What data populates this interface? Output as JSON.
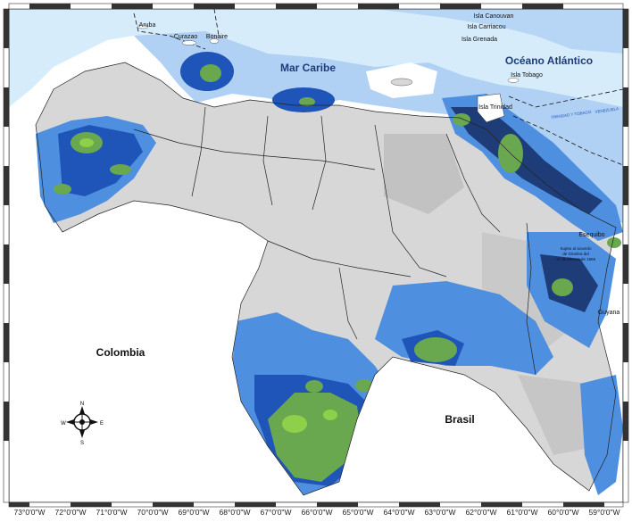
{
  "map": {
    "labels": {
      "aruba": "Aruba",
      "curazao": "Curazao",
      "bonaire": "Bonaire",
      "mar_caribe": "Mar Caribe",
      "isla_canouvan": "Isla Canouvan",
      "isla_carriacou": "Isla Carriacou",
      "isla_grenada": "Isla Grenada",
      "oceano_atlantico": "Océano Atlántico",
      "isla_tobago": "Isla Tobago",
      "isla_trinidad": "Isla Trinidad",
      "trinidad_tobago": "TRINIDAD Y TOBAGO",
      "venezuela": "VENEZUELA",
      "esequibo": "Esequibo",
      "acuerdo_line1": "Sujeto al acuerdo",
      "acuerdo_line2": "de Ginebra del",
      "acuerdo_line3": "17 de febrero de 1966",
      "guyana": "Guyana",
      "colombia": "Colombia",
      "brasil": "Brasil"
    },
    "compass": {
      "n": "N",
      "s": "S",
      "e": "E",
      "w": "W"
    },
    "longitude_ticks": [
      "73°0'0\"W",
      "72°0'0\"W",
      "71°0'0\"W",
      "70°0'0\"W",
      "69°0'0\"W",
      "68°0'0\"W",
      "67°0'0\"W",
      "66°0'0\"W",
      "65°0'0\"W",
      "64°0'0\"W",
      "63°0'0\"W",
      "62°0'0\"W",
      "61°0'0\"W",
      "60°0'0\"W",
      "59°0'0\"W"
    ],
    "colors": {
      "sea_light": "#d6ecfb",
      "light_blue": "#a9cdf2",
      "mid_blue": "#4f8fe0",
      "deep_blue": "#1f55b8",
      "navy": "#1d3c78",
      "green": "#6aa84f",
      "bright_green": "#8fd04a",
      "grey_land": "#d7d7d7",
      "grey_dark": "#bdbdbd"
    }
  }
}
